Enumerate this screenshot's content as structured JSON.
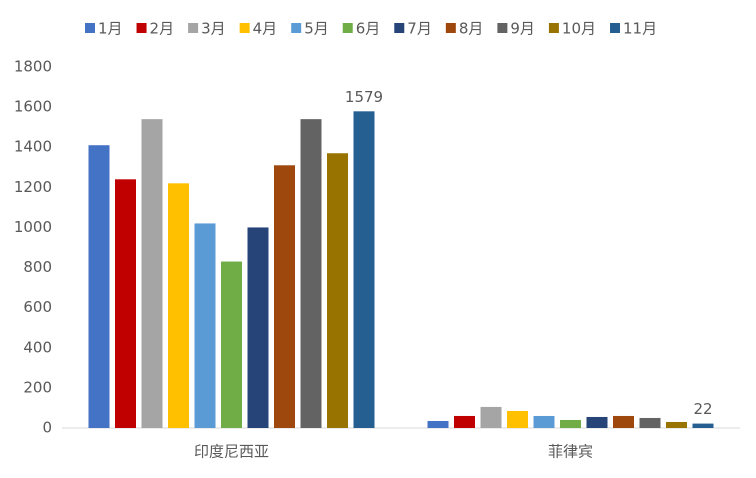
{
  "chart_data": {
    "type": "bar",
    "categories": [
      "印度尼西亚",
      "菲律宾"
    ],
    "series": [
      {
        "name": "1月",
        "color": "#4472c4",
        "values": [
          1410,
          35
        ]
      },
      {
        "name": "2月",
        "color": "#c00000",
        "values": [
          1240,
          60
        ]
      },
      {
        "name": "3月",
        "color": "#a5a5a5",
        "values": [
          1540,
          105
        ]
      },
      {
        "name": "4月",
        "color": "#ffc000",
        "values": [
          1220,
          85
        ]
      },
      {
        "name": "5月",
        "color": "#5b9bd5",
        "values": [
          1020,
          60
        ]
      },
      {
        "name": "6月",
        "color": "#70ad47",
        "values": [
          830,
          40
        ]
      },
      {
        "name": "7月",
        "color": "#264478",
        "values": [
          1000,
          55
        ]
      },
      {
        "name": "8月",
        "color": "#9e480e",
        "values": [
          1310,
          60
        ]
      },
      {
        "name": "9月",
        "color": "#636363",
        "values": [
          1540,
          50
        ]
      },
      {
        "name": "10月",
        "color": "#997300",
        "values": [
          1370,
          30
        ]
      },
      {
        "name": "11月",
        "color": "#255e91",
        "values": [
          1579,
          22
        ],
        "show_labels": true
      }
    ],
    "ylim": [
      0,
      1800
    ],
    "yticks": [
      0,
      200,
      400,
      600,
      800,
      1000,
      1200,
      1400,
      1600,
      1800
    ],
    "grid": false,
    "legend": "top"
  }
}
